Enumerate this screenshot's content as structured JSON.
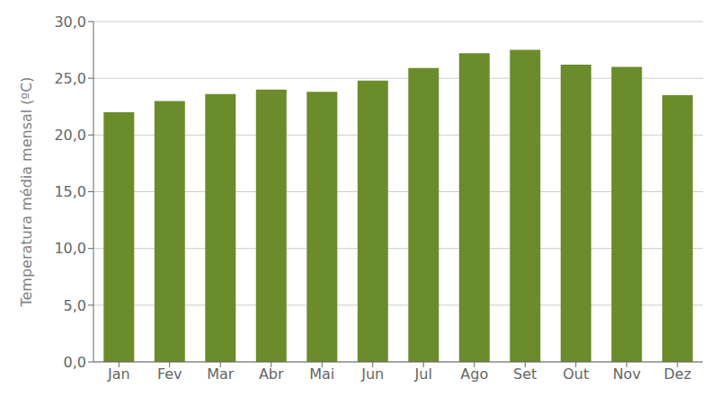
{
  "chart_data": {
    "type": "bar",
    "categories": [
      "Jan",
      "Fev",
      "Mar",
      "Abr",
      "Mai",
      "Jun",
      "Jul",
      "Ago",
      "Set",
      "Out",
      "Nov",
      "Dez"
    ],
    "values": [
      22.0,
      23.0,
      23.6,
      24.0,
      23.8,
      24.8,
      25.9,
      27.2,
      27.5,
      26.2,
      26.0,
      23.5
    ],
    "color": "#6b8c2a",
    "ylabel": "Temperatura média mensal (ºC)",
    "ylim": [
      0,
      30
    ],
    "yticks": [
      {
        "value": 0,
        "label": "0,0"
      },
      {
        "value": 5,
        "label": "5,0"
      },
      {
        "value": 10,
        "label": "10,0"
      },
      {
        "value": 15,
        "label": "15,0"
      },
      {
        "value": 20,
        "label": "20,0"
      },
      {
        "value": 25,
        "label": "25,0"
      },
      {
        "value": 30,
        "label": "30,0"
      }
    ],
    "grid": true
  }
}
